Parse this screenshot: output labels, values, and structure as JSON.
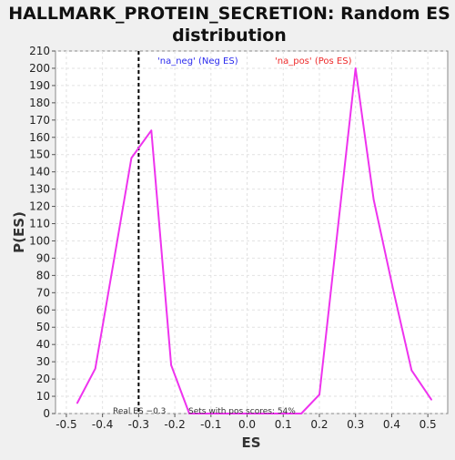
{
  "chart_data": {
    "type": "line",
    "title_line1": "HALLMARK_PROTEIN_SECRETION: Random ES",
    "title_line2": "distribution",
    "xlabel": "ES",
    "ylabel": "P(ES)",
    "xlim": [
      -0.53,
      0.555
    ],
    "ylim": [
      0,
      210
    ],
    "x_ticks": [
      -0.5,
      -0.4,
      -0.3,
      -0.2,
      -0.1,
      0.0,
      0.1,
      0.2,
      0.3,
      0.4,
      0.5
    ],
    "x_tick_labels": [
      "-0.5",
      "-0.4",
      "-0.3",
      "-0.2",
      "-0.1",
      "0.0",
      "0.1",
      "0.2",
      "0.3",
      "0.4",
      "0.5"
    ],
    "y_ticks": [
      0,
      10,
      20,
      30,
      40,
      50,
      60,
      70,
      80,
      90,
      100,
      110,
      120,
      130,
      140,
      150,
      160,
      170,
      180,
      190,
      200,
      210
    ],
    "grid": true,
    "line_color": "#ee33ee",
    "series": [
      {
        "x": [
          -0.47,
          -0.42,
          -0.37,
          -0.32,
          -0.265,
          -0.21,
          -0.16,
          0.0,
          0.15,
          0.2,
          0.3,
          0.35,
          0.405,
          0.455,
          0.51
        ],
        "y": [
          6,
          26,
          87,
          148,
          164,
          28,
          0,
          0,
          0,
          11,
          200,
          124,
          71,
          25,
          8
        ]
      }
    ],
    "legend": [
      {
        "label": "'na_neg' (Neg ES)",
        "color": "#2a2aee"
      },
      {
        "label": "'na_pos' (Pos ES)",
        "color": "#ee2a2a"
      }
    ],
    "real_es": -0.3,
    "real_es_label": "Real ES −0.3",
    "annotation": "Sets with pos scores: 54%"
  }
}
